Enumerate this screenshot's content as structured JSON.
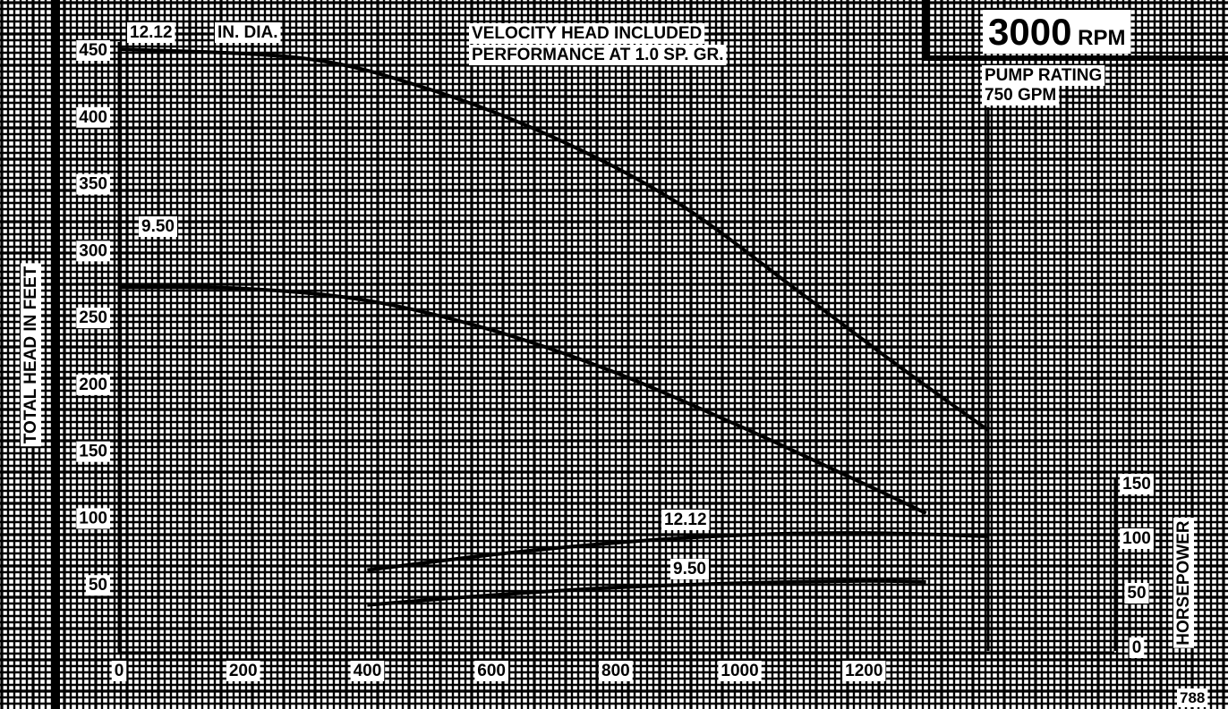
{
  "chart_data": {
    "type": "line",
    "title_rpm": "3000",
    "title_rpm_unit": "RPM",
    "notes": [
      "VELOCITY HEAD INCLUDED",
      "PERFORMANCE AT 1.0 SP. GR."
    ],
    "diameter_label": "IN. DIA.",
    "pump_rating": [
      "PUMP RATING",
      "750 GPM"
    ],
    "ylabel": "TOTAL HEAD IN FEET",
    "ylabel_right": "HORSEPOWER",
    "x_ticks": [
      0,
      200,
      400,
      600,
      800,
      1000,
      1200
    ],
    "y_ticks": [
      50,
      100,
      150,
      200,
      250,
      300,
      350,
      400,
      450
    ],
    "y2_ticks": [
      0,
      50,
      100,
      150
    ],
    "xlim": [
      0,
      1400
    ],
    "ylim": [
      0,
      450
    ],
    "y2lim": [
      0,
      150
    ],
    "code": "788",
    "head_series": [
      {
        "name": "12.12",
        "x": [
          0,
          300,
          500,
          700,
          900,
          1100,
          1250,
          1400
        ],
        "y": [
          450,
          443,
          420,
          384,
          335,
          267,
          215,
          165
        ]
      },
      {
        "name": "9.50",
        "x": [
          0,
          200,
          400,
          600,
          800,
          1000,
          1200,
          1300
        ],
        "y": [
          272,
          271,
          262,
          240,
          208,
          168,
          125,
          103
        ]
      }
    ],
    "hp_series": [
      {
        "name": "12.12",
        "x": [
          400,
          600,
          800,
          1000,
          1200,
          1400
        ],
        "y": [
          70,
          84,
          95,
          102,
          104,
          101
        ]
      },
      {
        "name": "9.50",
        "x": [
          400,
          600,
          800,
          1000,
          1200,
          1300
        ],
        "y": [
          38,
          47,
          54,
          58,
          60,
          59
        ]
      }
    ]
  }
}
